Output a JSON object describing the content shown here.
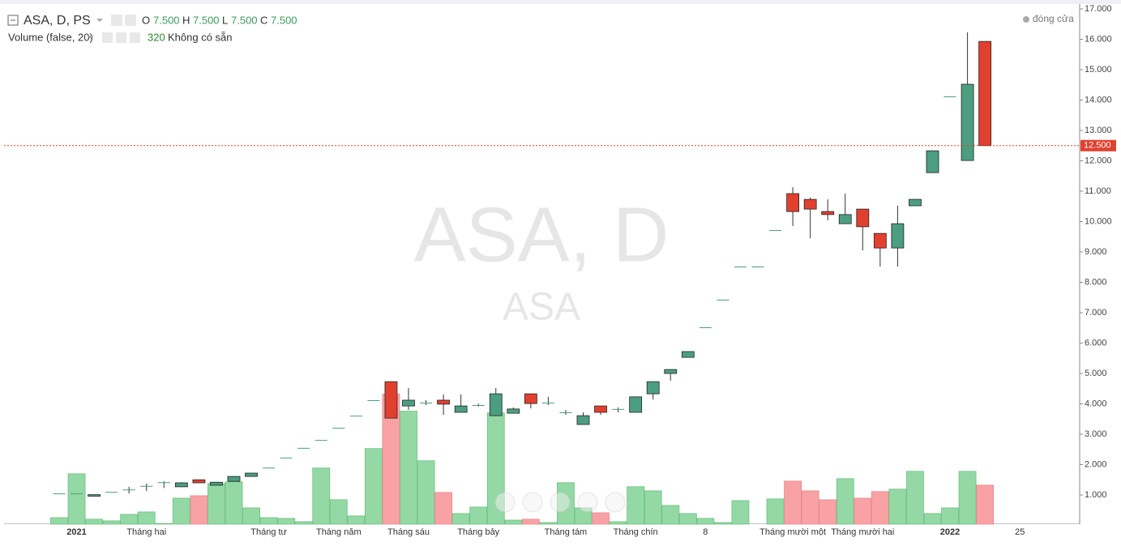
{
  "chart_data": {
    "type": "candlestick",
    "title": "ASA, D, PS",
    "watermark": "ASA, D",
    "watermark_sub": "ASA",
    "legend": {
      "o_label": "O",
      "o_value": {
        "value": 7500,
        "label": "7.500"
      },
      "h_label": "H",
      "h_value": {
        "value": 7500,
        "label": "7.500"
      },
      "l_label": "L",
      "l_value": {
        "value": 7500,
        "label": "7.500"
      },
      "c_label": "C",
      "c_value": {
        "value": 7500,
        "label": "7.500"
      },
      "status": "đóng cửa"
    },
    "categories": [
      null,
      "2021",
      null,
      null,
      null,
      "Tháng hai",
      null,
      null,
      null,
      null,
      null,
      null,
      "Tháng tư",
      null,
      null,
      null,
      "Tháng năm",
      null,
      null,
      null,
      "Tháng sáu",
      null,
      null,
      null,
      "Tháng bảy",
      null,
      null,
      null,
      null,
      "Tháng tám",
      null,
      null,
      null,
      "Tháng chín",
      null,
      null,
      null,
      "8",
      null,
      null,
      null,
      null,
      "Tháng mười một",
      null,
      null,
      null,
      "Tháng mười hai",
      null,
      null,
      null,
      null,
      "2022",
      null,
      null,
      null,
      "25"
    ],
    "open": [
      1050,
      1050,
      960,
      1100,
      1180,
      1300,
      1420,
      1270,
      1500,
      1320,
      1450,
      1610,
      1900,
      2230,
      2550,
      2810,
      3210,
      3610,
      4120,
      4730,
      3930,
      4040,
      4120,
      3720,
      3960,
      3610,
      3690,
      4330,
      4040,
      3720,
      3320,
      3930,
      3830,
      3720,
      4330,
      5000,
      5530,
      6520,
      7430,
      8520,
      8520,
      9720,
      10920,
      10730,
      10330,
      9930,
      10410,
      9610,
      9130,
      10520,
      11610,
      14120,
      12010,
      15930,
      null,
      null
    ],
    "high": [
      1050,
      1050,
      1010,
      1100,
      1270,
      1380,
      1450,
      1420,
      1500,
      1420,
      1610,
      1720,
      1900,
      2230,
      2550,
      2810,
      3210,
      3610,
      4120,
      4730,
      4520,
      4120,
      4310,
      4310,
      4010,
      4520,
      3880,
      4330,
      4230,
      3800,
      3720,
      3930,
      3880,
      4230,
      4730,
      5130,
      5720,
      6520,
      7430,
      8520,
      8520,
      9720,
      11130,
      10790,
      10730,
      10920,
      10410,
      9610,
      10520,
      10730,
      12330,
      14120,
      16230,
      15930,
      null,
      null
    ],
    "low": [
      1050,
      1050,
      960,
      1100,
      1050,
      1130,
      1230,
      1270,
      1400,
      1320,
      1450,
      1610,
      1900,
      2230,
      2550,
      2810,
      3210,
      3610,
      4120,
      3530,
      3800,
      3960,
      3640,
      3720,
      3910,
      3590,
      3690,
      3850,
      3960,
      3640,
      3320,
      3640,
      3720,
      3720,
      4140,
      4760,
      5530,
      6520,
      7430,
      8520,
      8520,
      9720,
      9850,
      9450,
      10040,
      9930,
      9050,
      8520,
      8520,
      10520,
      11610,
      14120,
      12010,
      12500,
      null,
      null
    ],
    "close": [
      1050,
      1050,
      1010,
      1100,
      1180,
      1300,
      1420,
      1400,
      1400,
      1420,
      1610,
      1720,
      1900,
      2230,
      2550,
      2810,
      3210,
      3610,
      4120,
      3530,
      4120,
      4040,
      3990,
      3930,
      3960,
      4330,
      3830,
      4010,
      4040,
      3720,
      3610,
      3720,
      3830,
      4230,
      4730,
      5130,
      5720,
      6520,
      7430,
      8520,
      8520,
      9720,
      10330,
      10410,
      10230,
      10230,
      9830,
      9130,
      9930,
      10730,
      12330,
      14120,
      14520,
      12500,
      null,
      null
    ],
    "volume": {
      "name": "Volume (false, 20)",
      "status": "Không có sẵn",
      "values": [
        53,
        413,
        40,
        27,
        80,
        100,
        5,
        213,
        233,
        333,
        347,
        133,
        53,
        47,
        20,
        460,
        200,
        67,
        620,
        1067,
        927,
        520,
        260,
        87,
        140,
        913,
        33,
        40,
        13,
        340,
        133,
        93,
        20,
        307,
        273,
        153,
        87,
        47,
        13,
        193,
        0,
        207,
        353,
        273,
        200,
        373,
        213,
        267,
        287,
        433,
        87,
        133,
        433,
        320,
        null,
        null
      ]
    },
    "up_color": "#4c9e80",
    "down_color": "#e2402f",
    "volume_up_color": "#94d9a5",
    "volume_down_color": "#f9a2a6",
    "ylim": [
      40,
      17160
    ],
    "yticks": [
      {
        "value": 1000,
        "label": "1.000"
      },
      {
        "value": 2000,
        "label": "2.000"
      },
      {
        "value": 3000,
        "label": "3.000"
      },
      {
        "value": 4000,
        "label": "4.000"
      },
      {
        "value": 5000,
        "label": "5.000"
      },
      {
        "value": 6000,
        "label": "6.000"
      },
      {
        "value": 7000,
        "label": "7.000"
      },
      {
        "value": 8000,
        "label": "8.000"
      },
      {
        "value": 9000,
        "label": "9.000"
      },
      {
        "value": 10000,
        "label": "10.000"
      },
      {
        "value": 11000,
        "label": "11.000"
      },
      {
        "value": 12000,
        "label": "12.000"
      },
      {
        "value": 13000,
        "label": "13.000"
      },
      {
        "value": 14000,
        "label": "14.000"
      },
      {
        "value": 15000,
        "label": "15.000"
      },
      {
        "value": 16000,
        "label": "16.000"
      },
      {
        "value": 17000,
        "label": "17.000"
      }
    ],
    "last_price": {
      "value": 12500,
      "label": "12.500"
    }
  }
}
